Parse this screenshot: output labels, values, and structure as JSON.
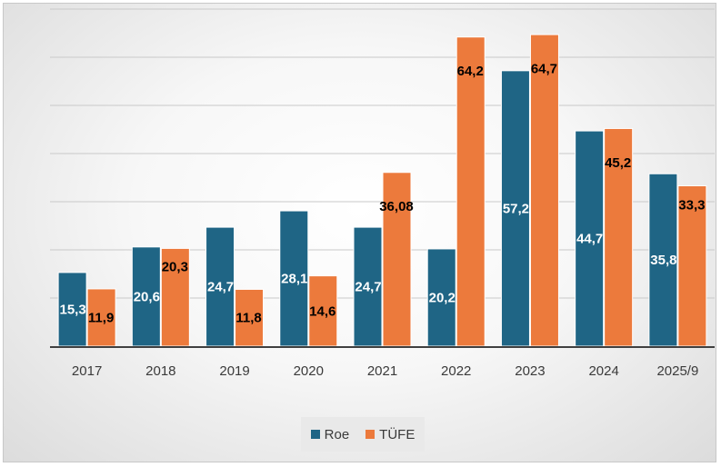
{
  "chart_data": {
    "type": "bar",
    "title": "",
    "xlabel": "",
    "ylabel": "",
    "categories": [
      "2017",
      "2018",
      "2019",
      "2020",
      "2021",
      "2022",
      "2023",
      "2024",
      "2025/9"
    ],
    "ylim": [
      0,
      70
    ],
    "grid": true,
    "legend_position": "bottom",
    "series": [
      {
        "name": "Roe",
        "color": "#1f6585",
        "label_color": "#ffffff",
        "values": [
          15.3,
          20.6,
          24.7,
          28.1,
          24.7,
          20.2,
          57.2,
          44.7,
          35.8
        ],
        "labels": [
          "15,3",
          "20,6",
          "24,7",
          "28,1",
          "24,7",
          "20,2",
          "57,2",
          "44,7",
          "35,8"
        ]
      },
      {
        "name": "TÜFE",
        "color": "#ec7a3c",
        "label_color": "#000000",
        "values": [
          11.9,
          20.3,
          11.8,
          14.6,
          36.08,
          64.2,
          64.7,
          45.2,
          33.3
        ],
        "labels": [
          "11,9",
          "20,3",
          "11,8",
          "14,6",
          "36,08",
          "64,2",
          "64,7",
          "45,2",
          "33,3"
        ]
      }
    ]
  }
}
